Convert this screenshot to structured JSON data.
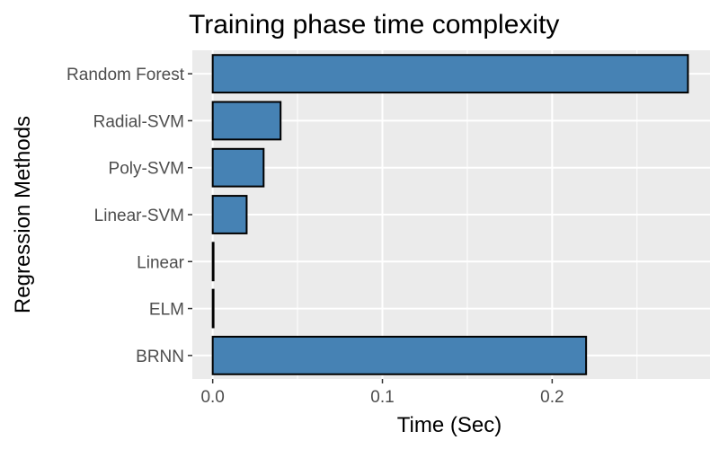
{
  "chart_data": {
    "type": "bar",
    "orientation": "horizontal",
    "title": "Training phase time complexity",
    "xlabel": "Time (Sec)",
    "ylabel": "Regression Methods",
    "categories": [
      "Random Forest",
      "Radial-SVM",
      "Poly-SVM",
      "Linear-SVM",
      "Linear",
      "ELM",
      "BRNN"
    ],
    "values": [
      0.28,
      0.04,
      0.03,
      0.02,
      0.0005,
      0.0005,
      0.22
    ],
    "xlim": [
      -0.012,
      0.293
    ],
    "xticks": [
      0.0,
      0.1,
      0.2
    ],
    "xtick_labels": [
      "0.0",
      "0.1",
      "0.2"
    ],
    "grid": true,
    "legend": "none",
    "colors": {
      "bar_fill": "#4682b4",
      "bar_stroke": "#000000",
      "panel_background": "#ebebeb",
      "grid": "#ffffff"
    }
  }
}
